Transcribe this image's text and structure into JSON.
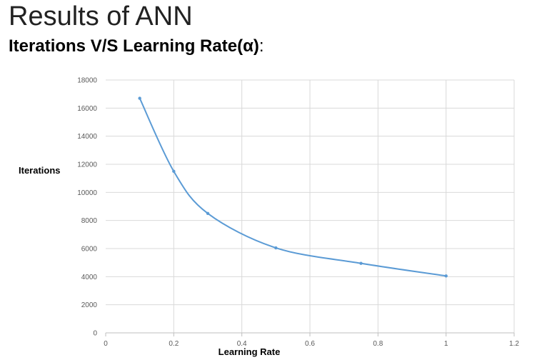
{
  "page": {
    "title": "Results of ANN",
    "subtitle": "Iterations V/S Learning Rate(α)",
    "subtitle_suffix": ":"
  },
  "chart_data": {
    "type": "line",
    "title": "",
    "xlabel": "Learning Rate",
    "ylabel": "Iterations",
    "xlim": [
      0,
      1.2
    ],
    "ylim": [
      0,
      18000
    ],
    "xticks": [
      "0",
      "0.2",
      "0.4",
      "0.6",
      "0.8",
      "1",
      "1.2"
    ],
    "yticks": [
      "0",
      "2000",
      "4000",
      "6000",
      "8000",
      "10000",
      "12000",
      "14000",
      "16000",
      "18000"
    ],
    "grid": true,
    "smooth": true,
    "colors": {
      "line": "#5b9bd5",
      "grid": "#d9d9d9",
      "axis": "#bfbfbf",
      "tick_text": "#595959"
    },
    "series": [
      {
        "x": [
          0.1,
          0.2,
          0.3,
          0.5,
          0.75,
          1.0
        ],
        "values": [
          16700,
          11500,
          8500,
          6050,
          4950,
          4050
        ]
      }
    ]
  }
}
